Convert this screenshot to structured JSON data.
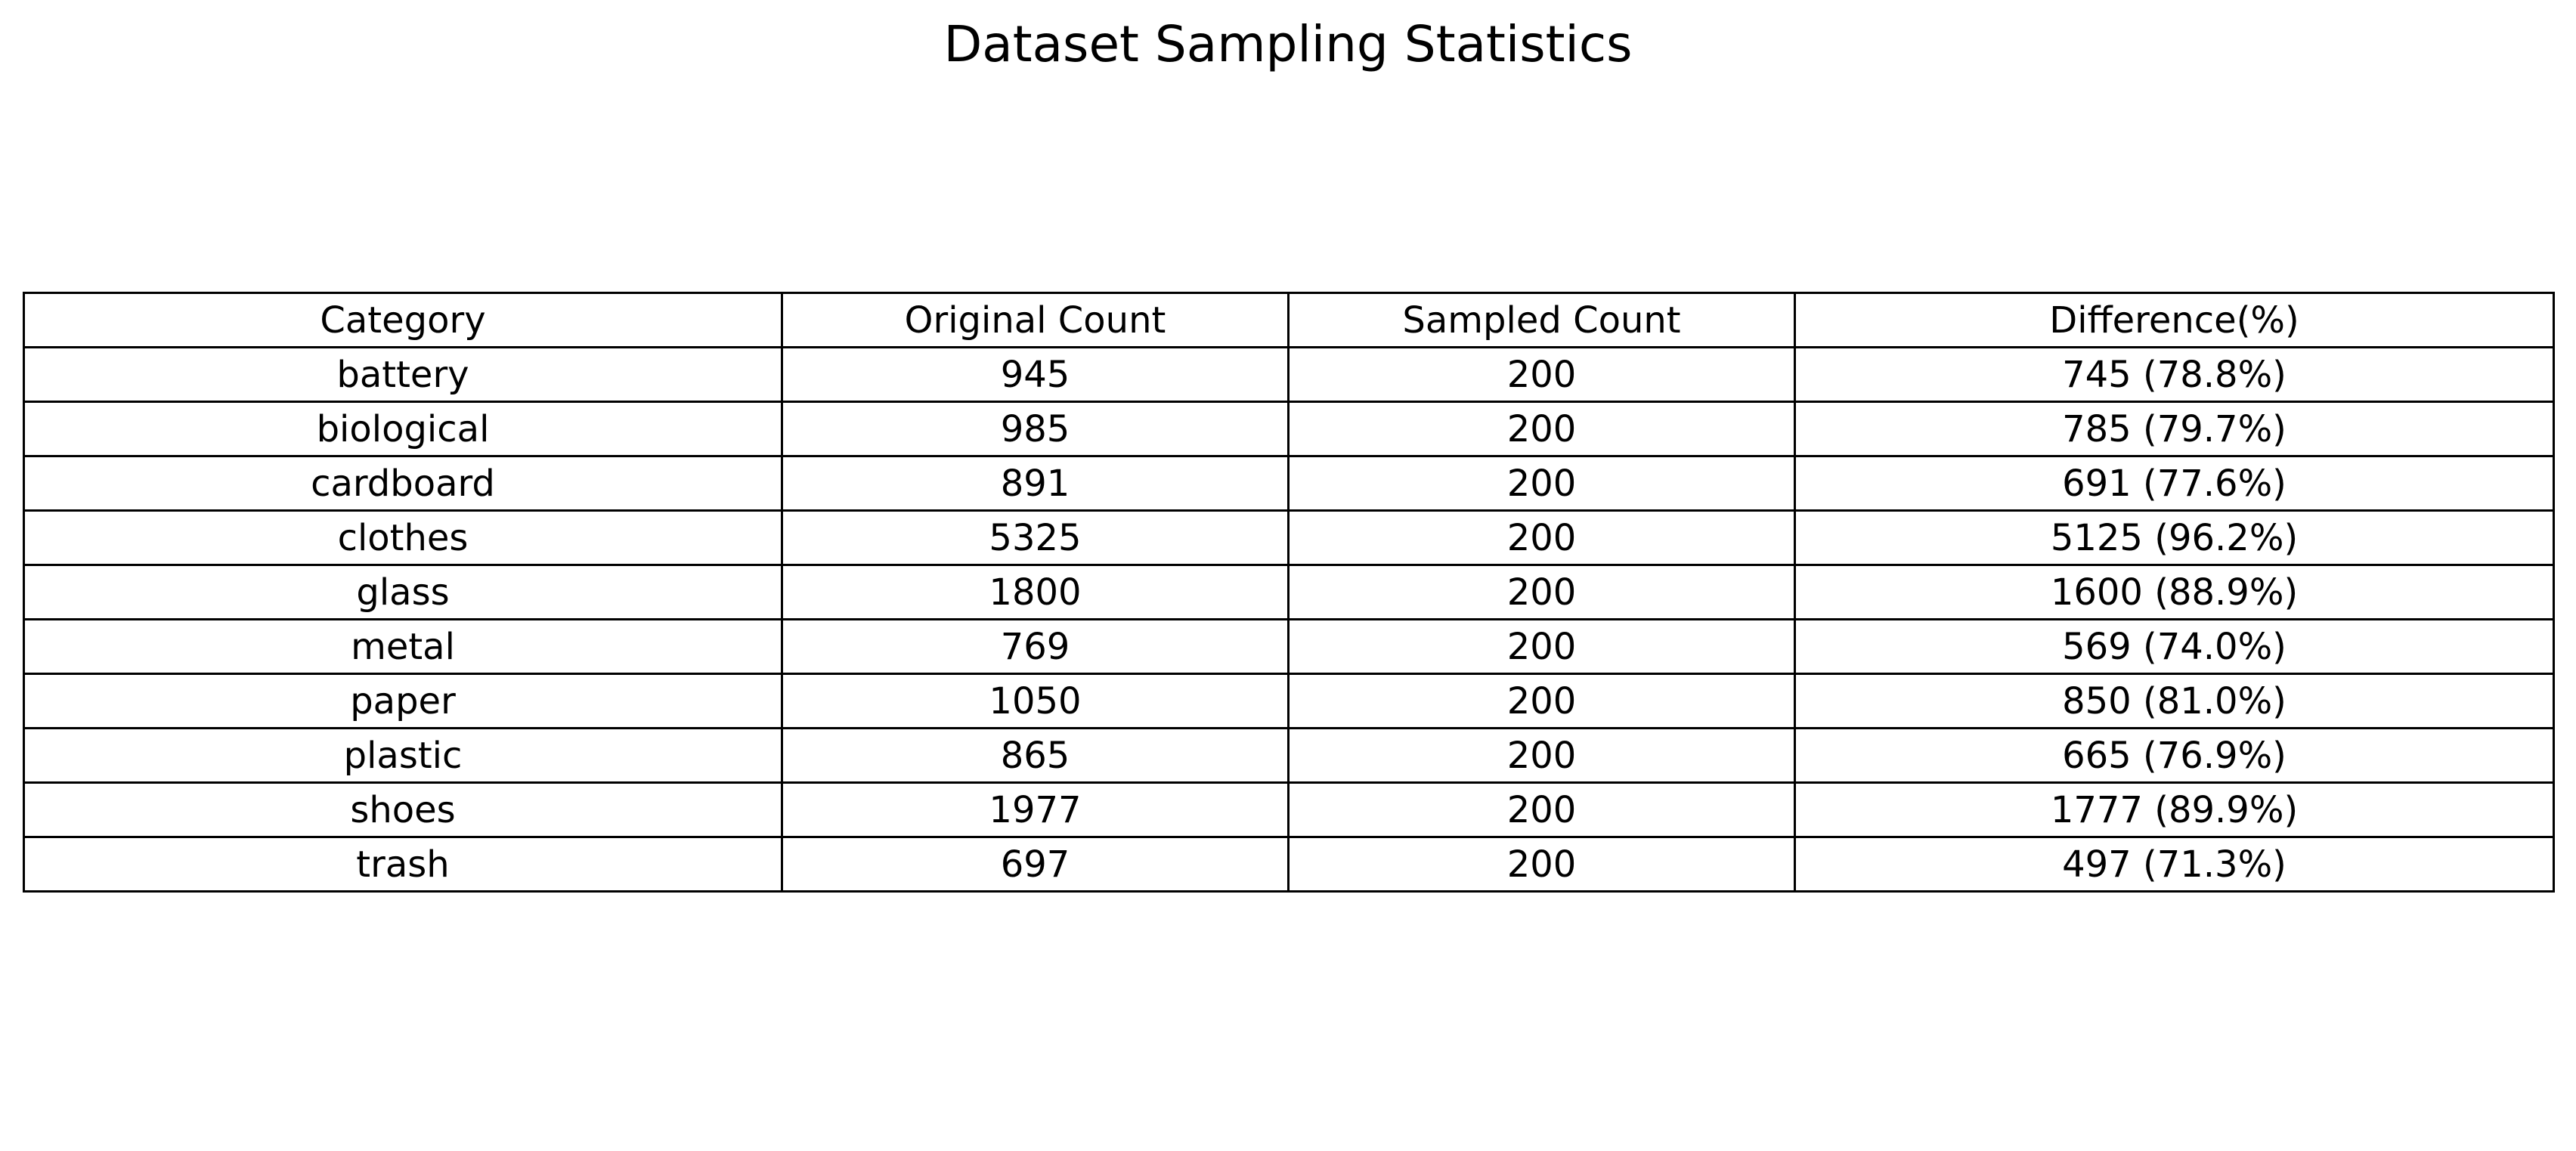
{
  "chart_data": {
    "type": "table",
    "title": "Dataset Sampling Statistics",
    "columns": [
      "Category",
      "Original Count",
      "Sampled Count",
      "Difference(%)"
    ],
    "rows": [
      [
        "battery",
        "945",
        "200",
        "745 (78.8%)"
      ],
      [
        "biological",
        "985",
        "200",
        "785 (79.7%)"
      ],
      [
        "cardboard",
        "891",
        "200",
        "691 (77.6%)"
      ],
      [
        "clothes",
        "5325",
        "200",
        "5125 (96.2%)"
      ],
      [
        "glass",
        "1800",
        "200",
        "1600 (88.9%)"
      ],
      [
        "metal",
        "769",
        "200",
        "569 (74.0%)"
      ],
      [
        "paper",
        "1050",
        "200",
        "850 (81.0%)"
      ],
      [
        "plastic",
        "865",
        "200",
        "665 (76.9%)"
      ],
      [
        "shoes",
        "1977",
        "200",
        "1777 (89.9%)"
      ],
      [
        "trash",
        "697",
        "200",
        "497 (71.3%)"
      ]
    ]
  }
}
